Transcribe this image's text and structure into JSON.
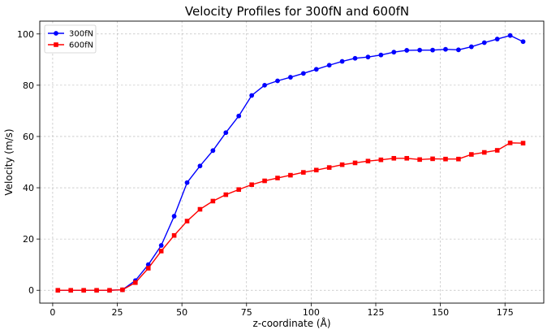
{
  "chart_data": {
    "type": "line",
    "title": "Velocity Profiles for 300fN and 600fN",
    "xlabel": "z-coordinate (Å)",
    "ylabel": "Velocity (m/s)",
    "xlim": [
      -5,
      190
    ],
    "ylim": [
      -5,
      105
    ],
    "xticks": [
      0,
      25,
      50,
      75,
      100,
      125,
      150,
      175
    ],
    "yticks": [
      0,
      20,
      40,
      60,
      80,
      100
    ],
    "grid": true,
    "legend_position": "upper-left",
    "series": [
      {
        "name": "300fN",
        "color": "#0000ff",
        "marker": "circle",
        "x": [
          2,
          7,
          12,
          17,
          22,
          27,
          32,
          37,
          42,
          47,
          52,
          57,
          62,
          67,
          72,
          77,
          82,
          87,
          92,
          97,
          102,
          107,
          112,
          117,
          122,
          127,
          132,
          137,
          142,
          147,
          152,
          157,
          162,
          167,
          172,
          177,
          182
        ],
        "y": [
          0,
          0,
          0,
          0,
          0,
          0.2,
          3.8,
          10,
          17.5,
          28.9,
          42,
          48.5,
          54.5,
          61.5,
          68,
          76,
          80,
          81.7,
          83.1,
          84.6,
          86.2,
          87.8,
          89.3,
          90.5,
          91,
          91.8,
          92.9,
          93.6,
          93.7,
          93.7,
          94,
          93.8,
          95,
          96.6,
          98,
          99.4,
          97
        ]
      },
      {
        "name": "600fN",
        "color": "#ff0000",
        "marker": "square",
        "x": [
          2,
          7,
          12,
          17,
          22,
          27,
          32,
          37,
          42,
          47,
          52,
          57,
          62,
          67,
          72,
          77,
          82,
          87,
          92,
          97,
          102,
          107,
          112,
          117,
          122,
          127,
          132,
          137,
          142,
          147,
          152,
          157,
          162,
          167,
          172,
          177,
          182
        ],
        "y": [
          0,
          0,
          0,
          0,
          0,
          0.2,
          3,
          8.6,
          15.3,
          21.4,
          27,
          31.6,
          34.8,
          37.3,
          39.3,
          41.2,
          42.7,
          43.8,
          44.9,
          46,
          46.9,
          47.9,
          49,
          49.7,
          50.4,
          50.9,
          51.5,
          51.5,
          51,
          51.3,
          51.2,
          51.2,
          53,
          53.8,
          54.6,
          57.5,
          57.4
        ]
      }
    ]
  }
}
